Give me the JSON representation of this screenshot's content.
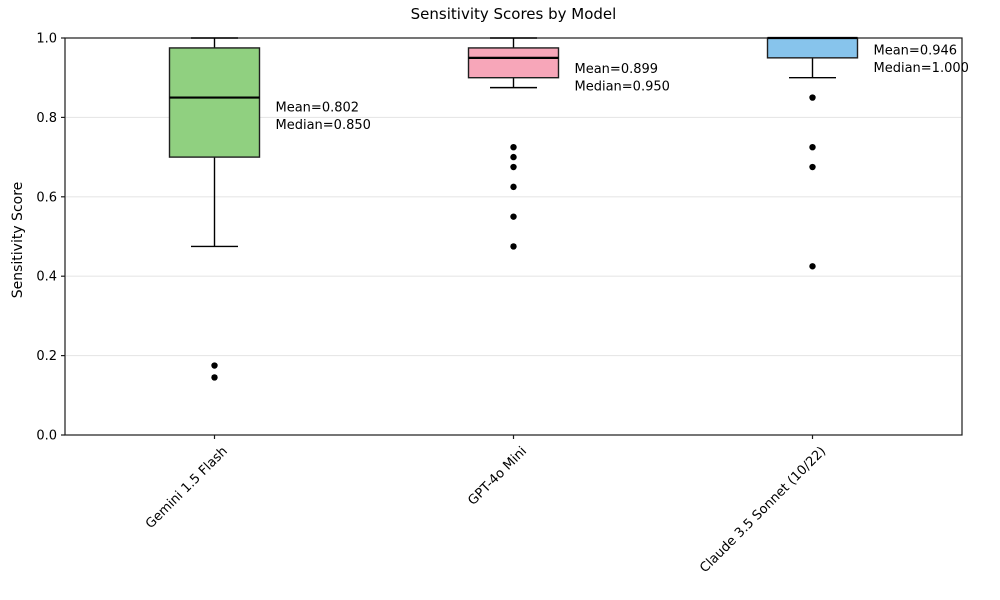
{
  "chart_data": {
    "type": "boxplot",
    "title": "Sensitivity Scores by Model",
    "ylabel": "Sensitivity Score",
    "xlabel": "",
    "ylim": [
      0.0,
      1.0
    ],
    "yticks": [
      "0.0",
      "0.2",
      "0.4",
      "0.6",
      "0.8",
      "1.0"
    ],
    "categories": [
      "Gemini 1.5 Flash",
      "GPT-4o Mini",
      "Claude 3.5 Sonnet (10/22)"
    ],
    "layout": {
      "grid": "horizontal-light",
      "legend": "none",
      "grid_color": "#e7e7e7",
      "spine_color": "#1a1a1a",
      "box_edge_color": "#1f1f1f",
      "outlier_color": "#000000"
    },
    "series": [
      {
        "label": "Gemini 1.5 Flash",
        "box_color": "#90d080",
        "whisker_low": 0.475,
        "q1": 0.7,
        "median": 0.85,
        "q3": 0.975,
        "whisker_high": 1.0,
        "mean": 0.802,
        "outliers": [
          0.175,
          0.145
        ],
        "mean_label": "Mean=0.802",
        "median_label": "Median=0.850"
      },
      {
        "label": "GPT-4o Mini",
        "box_color": "#f7a6b9",
        "whisker_low": 0.875,
        "q1": 0.9,
        "median": 0.95,
        "q3": 0.975,
        "whisker_high": 1.0,
        "mean": 0.899,
        "outliers": [
          0.725,
          0.7,
          0.675,
          0.625,
          0.55,
          0.475
        ],
        "mean_label": "Mean=0.899",
        "median_label": "Median=0.950"
      },
      {
        "label": "Claude 3.5 Sonnet (10/22)",
        "box_color": "#87c4ec",
        "whisker_low": 0.9,
        "q1": 0.95,
        "median": 1.0,
        "q3": 1.0,
        "whisker_high": 1.0,
        "mean": 0.946,
        "outliers": [
          0.85,
          0.725,
          0.675,
          0.425
        ],
        "mean_label": "Mean=0.946",
        "median_label": "Median=1.000"
      }
    ]
  }
}
